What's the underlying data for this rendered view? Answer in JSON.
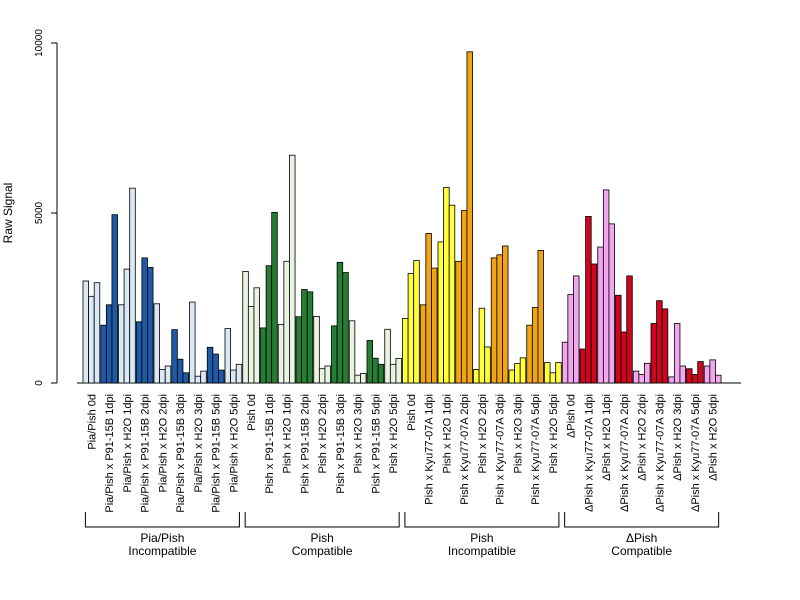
{
  "chart_data": {
    "type": "bar",
    "ylabel": "Raw Signal",
    "ylim": [
      0,
      10000
    ],
    "yticks": [
      0,
      5000,
      10000
    ],
    "tick_labels": [
      "0",
      "5000",
      "10000"
    ],
    "grid": false,
    "legend": "none",
    "categories": [
      {
        "label": "Pia/Pish 0d",
        "color": "#dbe8f5",
        "values": [
          3000,
          2550,
          2950
        ]
      },
      {
        "label": "Pia/Pish x P91-15B 1dpi",
        "color": "#1f5aa6",
        "values": [
          1700,
          2300,
          4950
        ]
      },
      {
        "label": "Pia/Pish x H2O 1dpi",
        "color": "#dbe8f5",
        "values": [
          2300,
          3350,
          5730
        ]
      },
      {
        "label": "Pia/Pish x P91-15B 2dpi",
        "color": "#1f5aa6",
        "values": [
          1800,
          3680,
          3400
        ]
      },
      {
        "label": "Pia/Pish x H2O 2dpi",
        "color": "#dbe8f5",
        "values": [
          2330,
          400,
          500
        ]
      },
      {
        "label": "Pia/Pish x P91-15B 3dpi",
        "color": "#1f5aa6",
        "values": [
          1570,
          700,
          300
        ]
      },
      {
        "label": "Pia/Pish x H2O 3dpi",
        "color": "#dbe8f5",
        "values": [
          2380,
          200,
          350
        ]
      },
      {
        "label": "Pia/Pish x P91-15B 5dpi",
        "color": "#1f5aa6",
        "values": [
          1050,
          850,
          380
        ]
      },
      {
        "label": "Pia/Pish x H2O 5dpi",
        "color": "#dbe8f5",
        "values": [
          1600,
          380,
          550
        ]
      },
      {
        "label": "Pish 0d",
        "color": "#e8f3e2",
        "values": [
          3280,
          2250,
          2800
        ]
      },
      {
        "label": "Pish x P91-15B 1dpi",
        "color": "#267d34",
        "values": [
          1620,
          3450,
          5020
        ]
      },
      {
        "label": "Pish x H2O 1dpi",
        "color": "#e8f3e2",
        "values": [
          1720,
          3580,
          6700
        ]
      },
      {
        "label": "Pish x P91-15B 2dpi",
        "color": "#267d34",
        "values": [
          1950,
          2750,
          2680
        ]
      },
      {
        "label": "Pish x H2O 2dpi",
        "color": "#e8f3e2",
        "values": [
          1960,
          420,
          500
        ]
      },
      {
        "label": "Pish x P91-15B 3dpi",
        "color": "#267d34",
        "values": [
          1680,
          3550,
          3250
        ]
      },
      {
        "label": "Pish x H2O 3dpi",
        "color": "#e8f3e2",
        "values": [
          1830,
          230,
          280
        ]
      },
      {
        "label": "Pish x P91-15B 5dpi",
        "color": "#267d34",
        "values": [
          1250,
          730,
          550
        ]
      },
      {
        "label": "Pish x H2O 5dpi",
        "color": "#e8f3e2",
        "values": [
          1580,
          550,
          720
        ]
      },
      {
        "label": "Pish 0d",
        "color": "#ffff3d",
        "values": [
          1900,
          3220,
          3600
        ]
      },
      {
        "label": "Pish x Kyu77-07A 1dpi",
        "color": "#f2a418",
        "values": [
          2300,
          4400,
          3380
        ]
      },
      {
        "label": "Pish x H2O 1dpi",
        "color": "#ffff3d",
        "values": [
          4150,
          5750,
          5230
        ]
      },
      {
        "label": "Pish x Kyu77-07A 2dpi",
        "color": "#f2a418",
        "values": [
          3580,
          5070,
          9740
        ]
      },
      {
        "label": "Pish x H2O 2dpi",
        "color": "#ffff3d",
        "values": [
          400,
          2200,
          1060
        ]
      },
      {
        "label": "Pish x Kyu77-07A 3dpi",
        "color": "#f2a418",
        "values": [
          3680,
          3770,
          4030
        ]
      },
      {
        "label": "Pish x H2O 3dpi",
        "color": "#ffff3d",
        "values": [
          380,
          570,
          740
        ]
      },
      {
        "label": "Pish x Kyu77-07A 5dpi",
        "color": "#f2a418",
        "values": [
          1700,
          2220,
          3900
        ]
      },
      {
        "label": "Pish x H2O 5dpi",
        "color": "#ffff3d",
        "values": [
          600,
          300,
          600
        ]
      },
      {
        "label": "ΔPish 0d",
        "color": "#f2a6ee",
        "values": [
          1200,
          2600,
          3150
        ]
      },
      {
        "label": "ΔPish x Kyu77-07A 1dpi",
        "color": "#d0051d",
        "values": [
          1000,
          4900,
          3500
        ]
      },
      {
        "label": "ΔPish x H2O 1dpi",
        "color": "#f2a6ee",
        "values": [
          4000,
          5680,
          4680
        ]
      },
      {
        "label": "ΔPish x Kyu77-07A 2dpi",
        "color": "#d0051d",
        "values": [
          2580,
          1500,
          3150
        ]
      },
      {
        "label": "ΔPish x H2O 2dpi",
        "color": "#f2a6ee",
        "values": [
          350,
          250,
          580
        ]
      },
      {
        "label": "ΔPish x Kyu77-07A 3dpi",
        "color": "#d0051d",
        "values": [
          1750,
          2420,
          2180
        ]
      },
      {
        "label": "ΔPish x H2O 3dpi",
        "color": "#f2a6ee",
        "values": [
          180,
          1750,
          500
        ]
      },
      {
        "label": "ΔPish x Kyu77-07A 5dpi",
        "color": "#d0051d",
        "values": [
          420,
          250,
          630
        ]
      },
      {
        "label": "ΔPish x H2O 5dpi",
        "color": "#f2a6ee",
        "values": [
          500,
          680,
          230
        ]
      }
    ],
    "groups": [
      {
        "line1": "Pia/Pish",
        "line2": "Incompatible",
        "start": 0,
        "end": 8
      },
      {
        "line1": "Pish",
        "line2": "Compatible",
        "start": 9,
        "end": 17
      },
      {
        "line1": "Pish",
        "line2": "Incompatible",
        "start": 18,
        "end": 26
      },
      {
        "line1": "ΔPish",
        "line2": "Compatible",
        "start": 27,
        "end": 35
      }
    ]
  }
}
